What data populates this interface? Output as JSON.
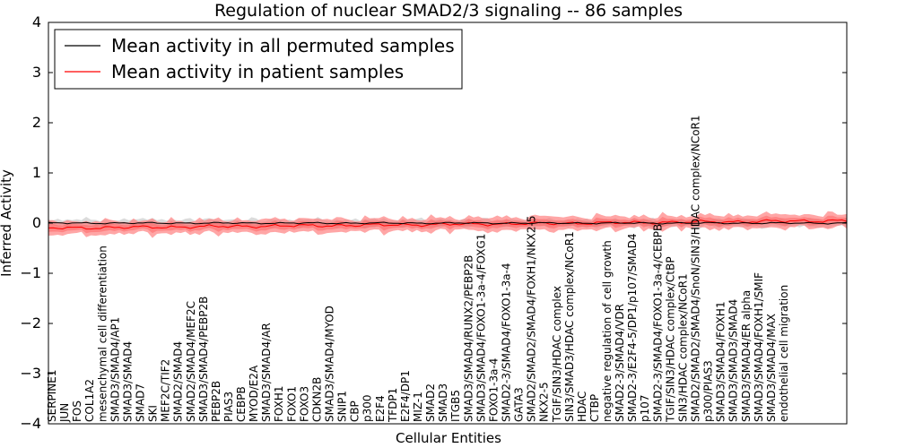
{
  "chart_data": {
    "type": "line",
    "title": "Regulation of nuclear SMAD2/3 signaling -- 86 samples",
    "xlabel": "Cellular Entities",
    "ylabel": "Inferred Activity",
    "ylim": [
      -4,
      4
    ],
    "yticks": [
      -4,
      -3,
      -2,
      -1,
      0,
      1,
      2,
      3,
      4
    ],
    "ytick_labels": [
      "−4",
      "−3",
      "−2",
      "−1",
      "0",
      "1",
      "2",
      "3",
      "4"
    ],
    "legend": {
      "position": "top-left",
      "entries": [
        {
          "label": "Mean activity in all permuted samples",
          "color": "#000000"
        },
        {
          "label": "Mean activity in patient samples",
          "color": "#ff0000"
        }
      ]
    },
    "colors": {
      "permuted": "#000000",
      "patient": "#ff0000",
      "patient_band": "#ff8080",
      "permuted_band": "#b0b0b0"
    },
    "n_points": 170,
    "series": [
      {
        "name": "Mean activity in all permuted samples",
        "mean": 0.0,
        "band": 0.12
      },
      {
        "name": "Mean activity in patient samples",
        "mean_start": -0.1,
        "mean_end": 0.05,
        "band": 0.2
      }
    ],
    "entity_labels": [
      "SERPINE1",
      "JUN",
      "FOS",
      "COL1A2",
      "mesenchymal cell differentiation",
      "SMAD3/SMAD4/AP1",
      "SMAD3/SMAD4",
      "SMAD7",
      "SKI",
      "MEF2C/TIF2",
      "SMAD2/SMAD4",
      "SMAD2/SMAD4/MEF2C",
      "SMAD3/SMAD4/PEBP2B",
      "PEBP2B",
      "PIAS3",
      "CEBPB",
      "MYOD/E2A",
      "SMAD3/SMAD4/AR",
      "FOXH1",
      "FOXO1",
      "FOXO3",
      "CDKN2B",
      "SMAD3/SMAD4/MYOD",
      "SNIP1",
      "CBP",
      "p300",
      "E2F4",
      "TFDP1",
      "E2F4/DP1",
      "MIZ-1",
      "SMAD2",
      "SMAD3",
      "ITGB5",
      "SMAD3/SMAD4/RUNX2/PEBP2B",
      "SMAD3/SMAD4/FOXO1-3a-4/FOXG1",
      "FOXO1-3a-4",
      "SMAD2-3/SMAD4/FOXO1-3a-4",
      "GATA3",
      "SMAD2/SMAD2/SMAD4/FOXH1/NKX2-5",
      "NKX2-5",
      "TGIF/SIN3/HDAC complex",
      "SIN3/SMAD3/HDAC complex/NCoR1",
      "HDAC",
      "CTBP",
      "negative regulation of cell growth",
      "SMAD2-3/SMAD4/VDR",
      "SMAD2-3/E2F4-5/DP1/p107/SMAD4",
      "p107",
      "SMAD2-3/SMAD4/FOXO1-3a-4/CEBPB",
      "TGIF/SIN3/HDAC complex/CtBP",
      "SIN3/HDAC complex/NCoR1",
      "SMAD2/SMAD2/SMAD4/SnoN/SIN3/HDAC complex/NCoR1",
      "p300/PIAS3",
      "SMAD3/SMAD4/FOXH1",
      "SMAD3/SMAD3/SMAD4",
      "SMAD3/SMAD4/ER alpha",
      "SMAD3/SMAD4/FOXH1/SMIF",
      "SMAD3/SMAD4/MAX",
      "endothelial cell migration"
    ]
  }
}
